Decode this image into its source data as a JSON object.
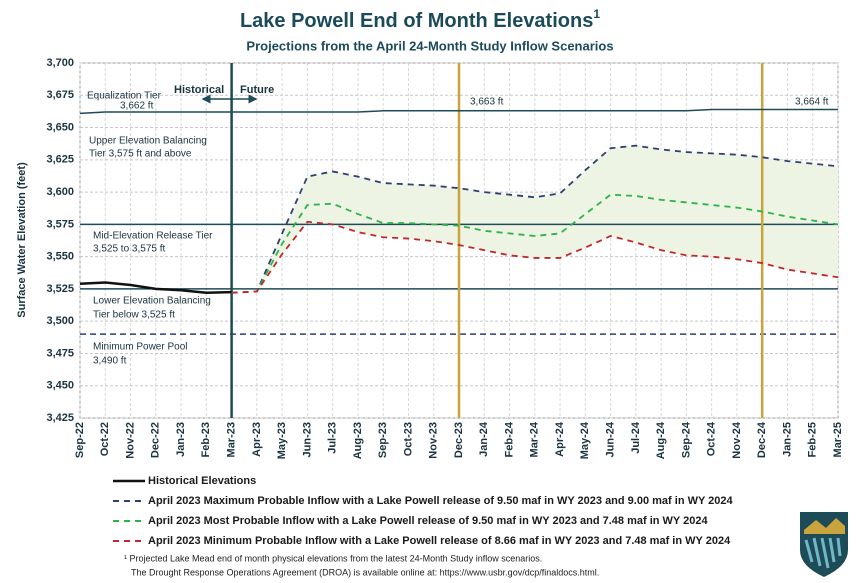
{
  "chart_data": {
    "type": "line",
    "title": "Lake Powell End of Month Elevations",
    "title_superscript": "1",
    "subtitle": "Projections from the April 24-Month Study Inflow Scenarios",
    "y_label": "Surface Water Elevation (feet)",
    "categories": [
      "Sep-22",
      "Oct-22",
      "Nov-22",
      "Dec-22",
      "Jan-23",
      "Feb-23",
      "Mar-23",
      "Apr-23",
      "May-23",
      "Jun-23",
      "Jul-23",
      "Aug-23",
      "Sep-23",
      "Oct-23",
      "Nov-23",
      "Dec-23",
      "Jan-24",
      "Feb-24",
      "Mar-24",
      "Apr-24",
      "May-24",
      "Jun-24",
      "Jul-24",
      "Aug-24",
      "Sep-24",
      "Oct-24",
      "Nov-24",
      "Dec-24",
      "Jan-25",
      "Feb-25",
      "Mar-25"
    ],
    "series": [
      {
        "name": "Historical Elevations",
        "color": "#111111",
        "dashed": false,
        "values": [
          3529,
          3530,
          3528,
          3525,
          3524,
          3522,
          3522.5,
          null,
          null,
          null,
          null,
          null,
          null,
          null,
          null,
          null,
          null,
          null,
          null,
          null,
          null,
          null,
          null,
          null,
          null,
          null,
          null,
          null,
          null,
          null,
          null
        ]
      },
      {
        "name": "April 2023 Maximum Probable Inflow with a Lake Powell release of 9.50 maf in WY 2023 and 9.00 maf in WY 2024",
        "color": "#2e3f73",
        "dashed": true,
        "values": [
          null,
          null,
          null,
          null,
          null,
          null,
          3522,
          3523,
          3568,
          3612,
          3616,
          3612,
          3607,
          3606,
          3605,
          3603,
          3600,
          3598,
          3596,
          3599,
          3617,
          3634,
          3636,
          3633,
          3631,
          3630,
          3629,
          3627,
          3624,
          3622,
          3620
        ]
      },
      {
        "name": "April 2023 Most Probable Inflow with a Lake Powell release of 9.50 maf in WY 2023 and 7.48 maf in WY 2024",
        "color": "#2db34a",
        "dashed": true,
        "values": [
          null,
          null,
          null,
          null,
          null,
          null,
          3522,
          3523,
          3560,
          3590,
          3591,
          3583,
          3576,
          3576,
          3575,
          3574,
          3570,
          3568,
          3566,
          3568,
          3583,
          3598,
          3597,
          3594,
          3592,
          3590,
          3588,
          3585,
          3581,
          3578,
          3575
        ]
      },
      {
        "name": "April 2023 Minimum Probable Inflow with a Lake Powell release of 8.66 maf in WY 2023 and 7.48 maf in WY 2024",
        "color": "#c0282d",
        "dashed": true,
        "values": [
          null,
          null,
          null,
          null,
          null,
          null,
          3522,
          3523,
          3552,
          3577,
          3575,
          3569,
          3565,
          3564,
          3562,
          3559,
          3555,
          3551,
          3549,
          3549,
          3557,
          3566,
          3561,
          3555,
          3551,
          3550,
          3548,
          3545,
          3540,
          3537,
          3534
        ]
      }
    ],
    "range_fill": "#eef4e4",
    "equalization_tier": {
      "color": "#1d4b57",
      "values": [
        3661,
        3662,
        3662,
        3662,
        3662,
        3662,
        3662,
        3662,
        3662,
        3662,
        3662,
        3662,
        3663,
        3663,
        3663,
        3663,
        3663,
        3663,
        3663,
        3663,
        3663,
        3663,
        3663,
        3663,
        3663,
        3664,
        3664,
        3664,
        3664,
        3664,
        3664
      ]
    },
    "reference_lines": [
      {
        "value": 3575,
        "color": "#1d4b57",
        "dashed": false
      },
      {
        "value": 3525,
        "color": "#1d4b57",
        "dashed": false
      },
      {
        "value": 3490,
        "color": "#2e3f73",
        "dashed": true
      }
    ],
    "vertical_lines": [
      {
        "at": "Mar-23",
        "color": "#1d4b57"
      },
      {
        "at": "Dec-23",
        "color": "#c9a43c"
      },
      {
        "at": "Dec-24",
        "color": "#c9a43c"
      }
    ],
    "ylim": [
      3425,
      3700
    ],
    "yticks": [
      {
        "value": 3425,
        "label": "3,425"
      },
      {
        "value": 3450,
        "label": "3,450"
      },
      {
        "value": 3475,
        "label": "3,475"
      },
      {
        "value": 3500,
        "label": "3,500"
      },
      {
        "value": 3525,
        "label": "3,525"
      },
      {
        "value": 3550,
        "label": "3,550"
      },
      {
        "value": 3575,
        "label": "3,575"
      },
      {
        "value": 3600,
        "label": "3,600"
      },
      {
        "value": 3625,
        "label": "3,625"
      },
      {
        "value": 3650,
        "label": "3,650"
      },
      {
        "value": 3675,
        "label": "3,675"
      },
      {
        "value": 3700,
        "label": "3,700"
      }
    ],
    "grid": true,
    "annotations": {
      "equalization": "Equalization Tier",
      "eq_start": "3,662 ft",
      "eq_mid": "3,663 ft",
      "eq_end": "3,664 ft",
      "historical": "Historical",
      "future": "Future",
      "upper_1": "Upper Elevation Balancing",
      "upper_2": "Tier 3,575 ft and above",
      "mid_1": "Mid-Elevation Release Tier",
      "mid_2": "3,525 to 3,575 ft",
      "lower_1": "Lower Elevation Balancing",
      "lower_2": "Tier below 3,525 ft",
      "pool_1": "Minimum Power Pool",
      "pool_2": "3,490 ft"
    },
    "footnotes": [
      "¹ Projected Lake Mead end of month physical elevations from the latest 24-Month Study inflow scenarios.",
      "The Drought Response Operations Agreement (DROA) is available online at: https://www.usbr.gov/dcp/finaldocs.html."
    ]
  }
}
